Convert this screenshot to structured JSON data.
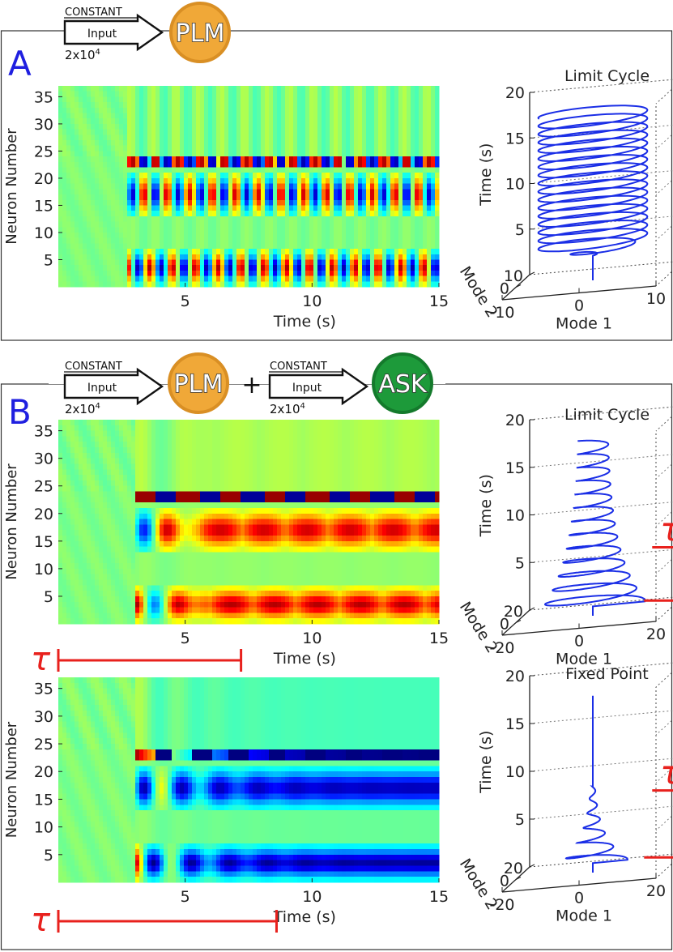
{
  "panels": {
    "A": {
      "letter": "A",
      "inputs": [
        {
          "label_top": "CONSTANT",
          "label_mid": "Input",
          "amount_base": "2x10",
          "amount_exp": "4",
          "target": "PLM",
          "target_color": "#f0a838",
          "target_rim": "#d98f24"
        }
      ]
    },
    "B": {
      "letter": "B",
      "plus": "+",
      "inputs": [
        {
          "label_top": "CONSTANT",
          "label_mid": "Input",
          "amount_base": "2x10",
          "amount_exp": "4",
          "target": "PLM",
          "target_color": "#f0a838",
          "target_rim": "#d98f24"
        },
        {
          "label_top": "CONSTANT",
          "label_mid": "Input",
          "amount_base": "2x10",
          "amount_exp": "4",
          "target": "ASK",
          "target_color": "#1d9a3a",
          "target_rim": "#147a2c"
        }
      ]
    }
  },
  "chart_data": [
    {
      "type": "heatmap",
      "id": "A-heatmap",
      "xlabel": "Time (s)",
      "ylabel": "Neuron Number",
      "xlim": [
        0,
        15
      ],
      "ylim": [
        0,
        37
      ],
      "xticks": [
        5,
        10,
        15
      ],
      "yticks": [
        5,
        10,
        15,
        20,
        25,
        30,
        35
      ],
      "onset_s": 2.7,
      "behavior": "sustained oscillation",
      "period_s": 0.9,
      "gain": 0.9,
      "envelope": "constant"
    },
    {
      "type": "line3d",
      "id": "A-trajectory",
      "title": "Limit Cycle",
      "xlabel": "Mode 1",
      "ylabel": "Mode 2",
      "zlabel": "Time (s)",
      "xticks": [
        "-10",
        "0",
        "10"
      ],
      "yticks": [
        "0",
        "10"
      ],
      "zticks": [
        "5",
        "10",
        "15",
        "20"
      ],
      "xlim": [
        -10,
        10
      ],
      "ylim": [
        -10,
        10
      ],
      "zlim": [
        0,
        20
      ],
      "onset_s": 2.7,
      "radius": 7,
      "period_s": 0.9,
      "decay": 0
    },
    {
      "type": "heatmap",
      "id": "B-heatmap-1",
      "xlabel": "Time (s)",
      "ylabel": "Neuron Number",
      "xlim": [
        0,
        15
      ],
      "ylim": [
        0,
        37
      ],
      "xticks": [
        5,
        10,
        15
      ],
      "yticks": [
        5,
        10,
        15,
        20,
        25,
        30,
        35
      ],
      "onset_s": 3.0,
      "behavior": "oscillation slowing to long excited bursts",
      "period_s": 1.7,
      "gain": 1.0,
      "envelope": "growing positive",
      "tau_label": "τ",
      "tau_range_s": [
        0,
        7.2
      ]
    },
    {
      "type": "line3d",
      "id": "B-trajectory-1",
      "title": "Limit Cycle",
      "xlabel": "Mode 1",
      "ylabel": "Mode 2",
      "zlabel": "Time (s)",
      "xticks": [
        "-20",
        "0",
        "20"
      ],
      "yticks": [
        "0",
        "20"
      ],
      "zticks": [
        "5",
        "10",
        "15",
        "20"
      ],
      "xlim": [
        -20,
        20
      ],
      "ylim": [
        -20,
        20
      ],
      "zlim": [
        0,
        20
      ],
      "onset_s": 1.0,
      "radius": 10,
      "period_s": 1.4,
      "decay": 0.18,
      "tau_label": "τ",
      "tau_range_s": [
        1.0,
        6.6
      ]
    },
    {
      "type": "heatmap",
      "id": "B-heatmap-2",
      "xlabel": "Time (s)",
      "ylabel": "Neuron Number",
      "xlim": [
        0,
        15
      ],
      "ylim": [
        0,
        37
      ],
      "xticks": [
        5,
        10,
        15
      ],
      "yticks": [
        5,
        10,
        15,
        20,
        25,
        30,
        35
      ],
      "onset_s": 3.0,
      "behavior": "damped oscillation to fixed inhibited state",
      "period_s": 1.5,
      "gain": 1.0,
      "envelope": "decaying to negative",
      "tau_label": "τ",
      "tau_range_s": [
        0,
        8.6
      ]
    },
    {
      "type": "line3d",
      "id": "B-trajectory-2",
      "title": "Fixed Point",
      "xlabel": "Mode 1",
      "ylabel": "Mode 2",
      "zlabel": "Time (s)",
      "xticks": [
        "-20",
        "0",
        "20"
      ],
      "yticks": [
        "0",
        "20"
      ],
      "zticks": [
        "5",
        "10",
        "15",
        "20"
      ],
      "xlim": [
        -20,
        20
      ],
      "ylim": [
        -20,
        20
      ],
      "zlim": [
        0,
        20
      ],
      "onset_s": 1.0,
      "radius": 9,
      "period_s": 1.5,
      "decay": 0.35,
      "tau_label": "τ",
      "tau_range_s": [
        1.0,
        8.0
      ]
    }
  ]
}
